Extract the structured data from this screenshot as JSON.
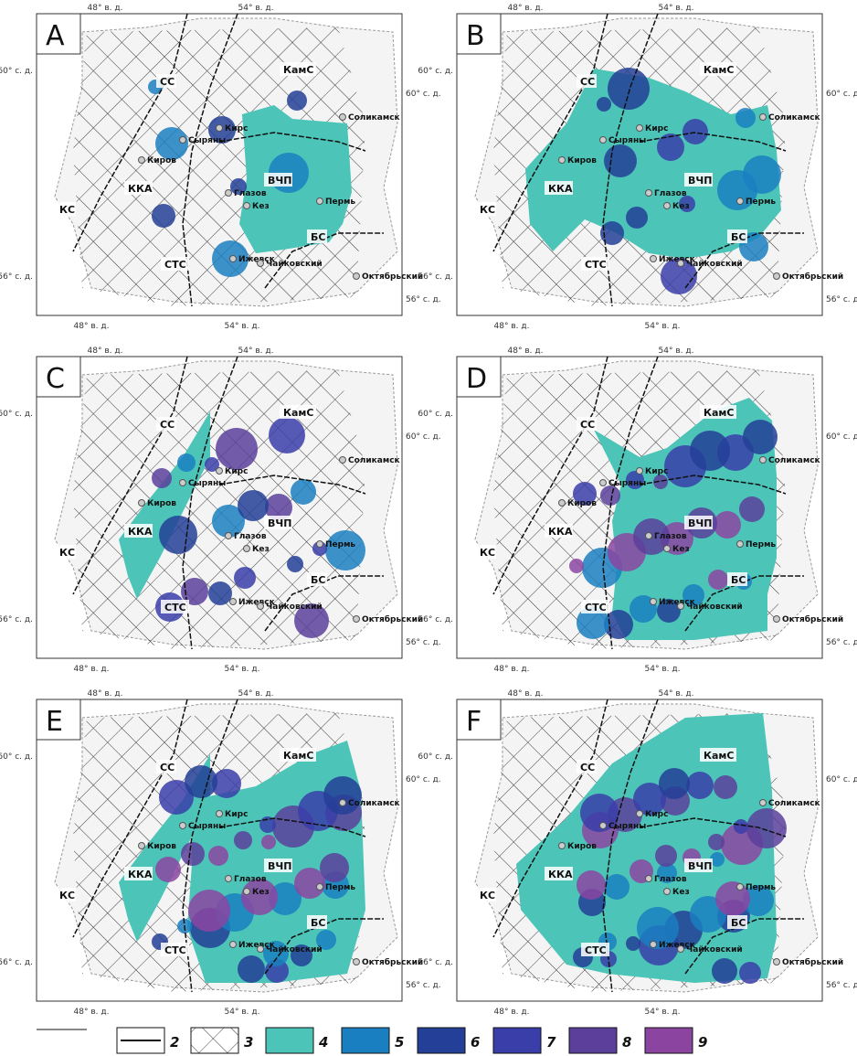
{
  "panels": [
    "A",
    "B",
    "C",
    "D",
    "E",
    "F"
  ],
  "lon_labels": [
    "48° в. д.",
    "54° в. д."
  ],
  "lat_labels": [
    "60° с. д.",
    "56° с. д."
  ],
  "regions": [
    "СС",
    "КамС",
    "ККА",
    "КС",
    "СТС",
    "ВЧП",
    "БС"
  ],
  "cities": [
    "Кирс",
    "Сыряны",
    "Киров",
    "Соликамск",
    "Глазов",
    "Кез",
    "Пермь",
    "Ижевск",
    "Чайковский",
    "Октябрьский"
  ],
  "legend": {
    "line_label": "2",
    "hatch_label": "3",
    "colors": [
      {
        "label": "4",
        "color": "#4cc5b8"
      },
      {
        "label": "5",
        "color": "#1a7fc0"
      },
      {
        "label": "6",
        "color": "#233f97"
      },
      {
        "label": "7",
        "color": "#3a3ea8"
      },
      {
        "label": "8",
        "color": "#5b3f9a"
      },
      {
        "label": "9",
        "color": "#8b45a1"
      }
    ]
  }
}
